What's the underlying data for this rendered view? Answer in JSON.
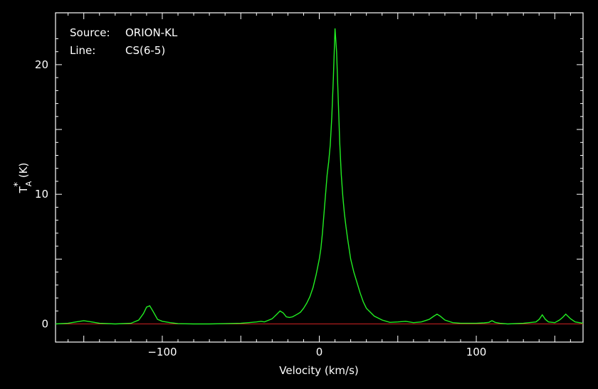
{
  "source_label": "Source:",
  "source_value": "ORION-KL",
  "line_label": "Line:",
  "line_value": "CS(6-5)",
  "chart_data": {
    "type": "line",
    "xlabel": "Velocity (km/s)",
    "ylabel_main": "T",
    "ylabel_sup": "*",
    "ylabel_sub": "A",
    "ylabel_unit": "(K)",
    "xlim": [
      -168,
      168
    ],
    "ylim": [
      -1.4,
      24
    ],
    "x_ticks": [
      -100,
      0,
      100
    ],
    "x_tick_labels": [
      "−100",
      "0",
      "100"
    ],
    "y_ticks": [
      0,
      10,
      20
    ],
    "y_tick_labels": [
      "0",
      "10",
      "20"
    ],
    "grid": false,
    "colors": {
      "spectrum": "#22ee22",
      "baseline": "#cc2222",
      "frame": "#ffffff",
      "background": "#000000"
    },
    "baseline": 0,
    "series": [
      {
        "x": [
          -168,
          -160,
          -155,
          -150,
          -145,
          -140,
          -130,
          -120,
          -115,
          -112,
          -110,
          -108,
          -106,
          -103,
          -100,
          -95,
          -90,
          -80,
          -70,
          -60,
          -50,
          -45,
          -40,
          -37,
          -35,
          -30,
          -27,
          -25,
          -23,
          -21,
          -19,
          -17,
          -14,
          -12,
          -10,
          -8,
          -6,
          -4,
          -2,
          0,
          1,
          2,
          3,
          4,
          5,
          6,
          7,
          8,
          9,
          10,
          11,
          12,
          13,
          14,
          15,
          16,
          17,
          18,
          19,
          20,
          22,
          24,
          26,
          28,
          30,
          35,
          40,
          45,
          50,
          55,
          60,
          65,
          70,
          73,
          75,
          77,
          80,
          85,
          90,
          100,
          105,
          108,
          110,
          112,
          115,
          120,
          130,
          138,
          140,
          142,
          144,
          146,
          150,
          153,
          155,
          157,
          160,
          163,
          168
        ],
        "y": [
          0.0,
          0.05,
          0.15,
          0.25,
          0.15,
          0.05,
          0.0,
          0.05,
          0.3,
          0.8,
          1.3,
          1.4,
          1.0,
          0.35,
          0.2,
          0.1,
          0.02,
          0.0,
          0.0,
          0.02,
          0.05,
          0.1,
          0.15,
          0.2,
          0.15,
          0.4,
          0.75,
          1.0,
          0.85,
          0.55,
          0.5,
          0.55,
          0.75,
          0.9,
          1.2,
          1.6,
          2.1,
          2.8,
          3.8,
          5.0,
          5.8,
          7.0,
          8.5,
          10.0,
          11.5,
          12.5,
          13.8,
          16.0,
          19.0,
          22.8,
          21.0,
          17.5,
          14.0,
          11.5,
          9.8,
          8.5,
          7.5,
          6.6,
          5.8,
          5.0,
          4.0,
          3.2,
          2.4,
          1.7,
          1.2,
          0.6,
          0.3,
          0.12,
          0.15,
          0.2,
          0.1,
          0.15,
          0.35,
          0.6,
          0.75,
          0.6,
          0.3,
          0.1,
          0.05,
          0.05,
          0.08,
          0.12,
          0.25,
          0.12,
          0.05,
          0.0,
          0.05,
          0.15,
          0.35,
          0.7,
          0.35,
          0.15,
          0.1,
          0.3,
          0.5,
          0.75,
          0.4,
          0.15,
          0.05
        ]
      }
    ]
  }
}
